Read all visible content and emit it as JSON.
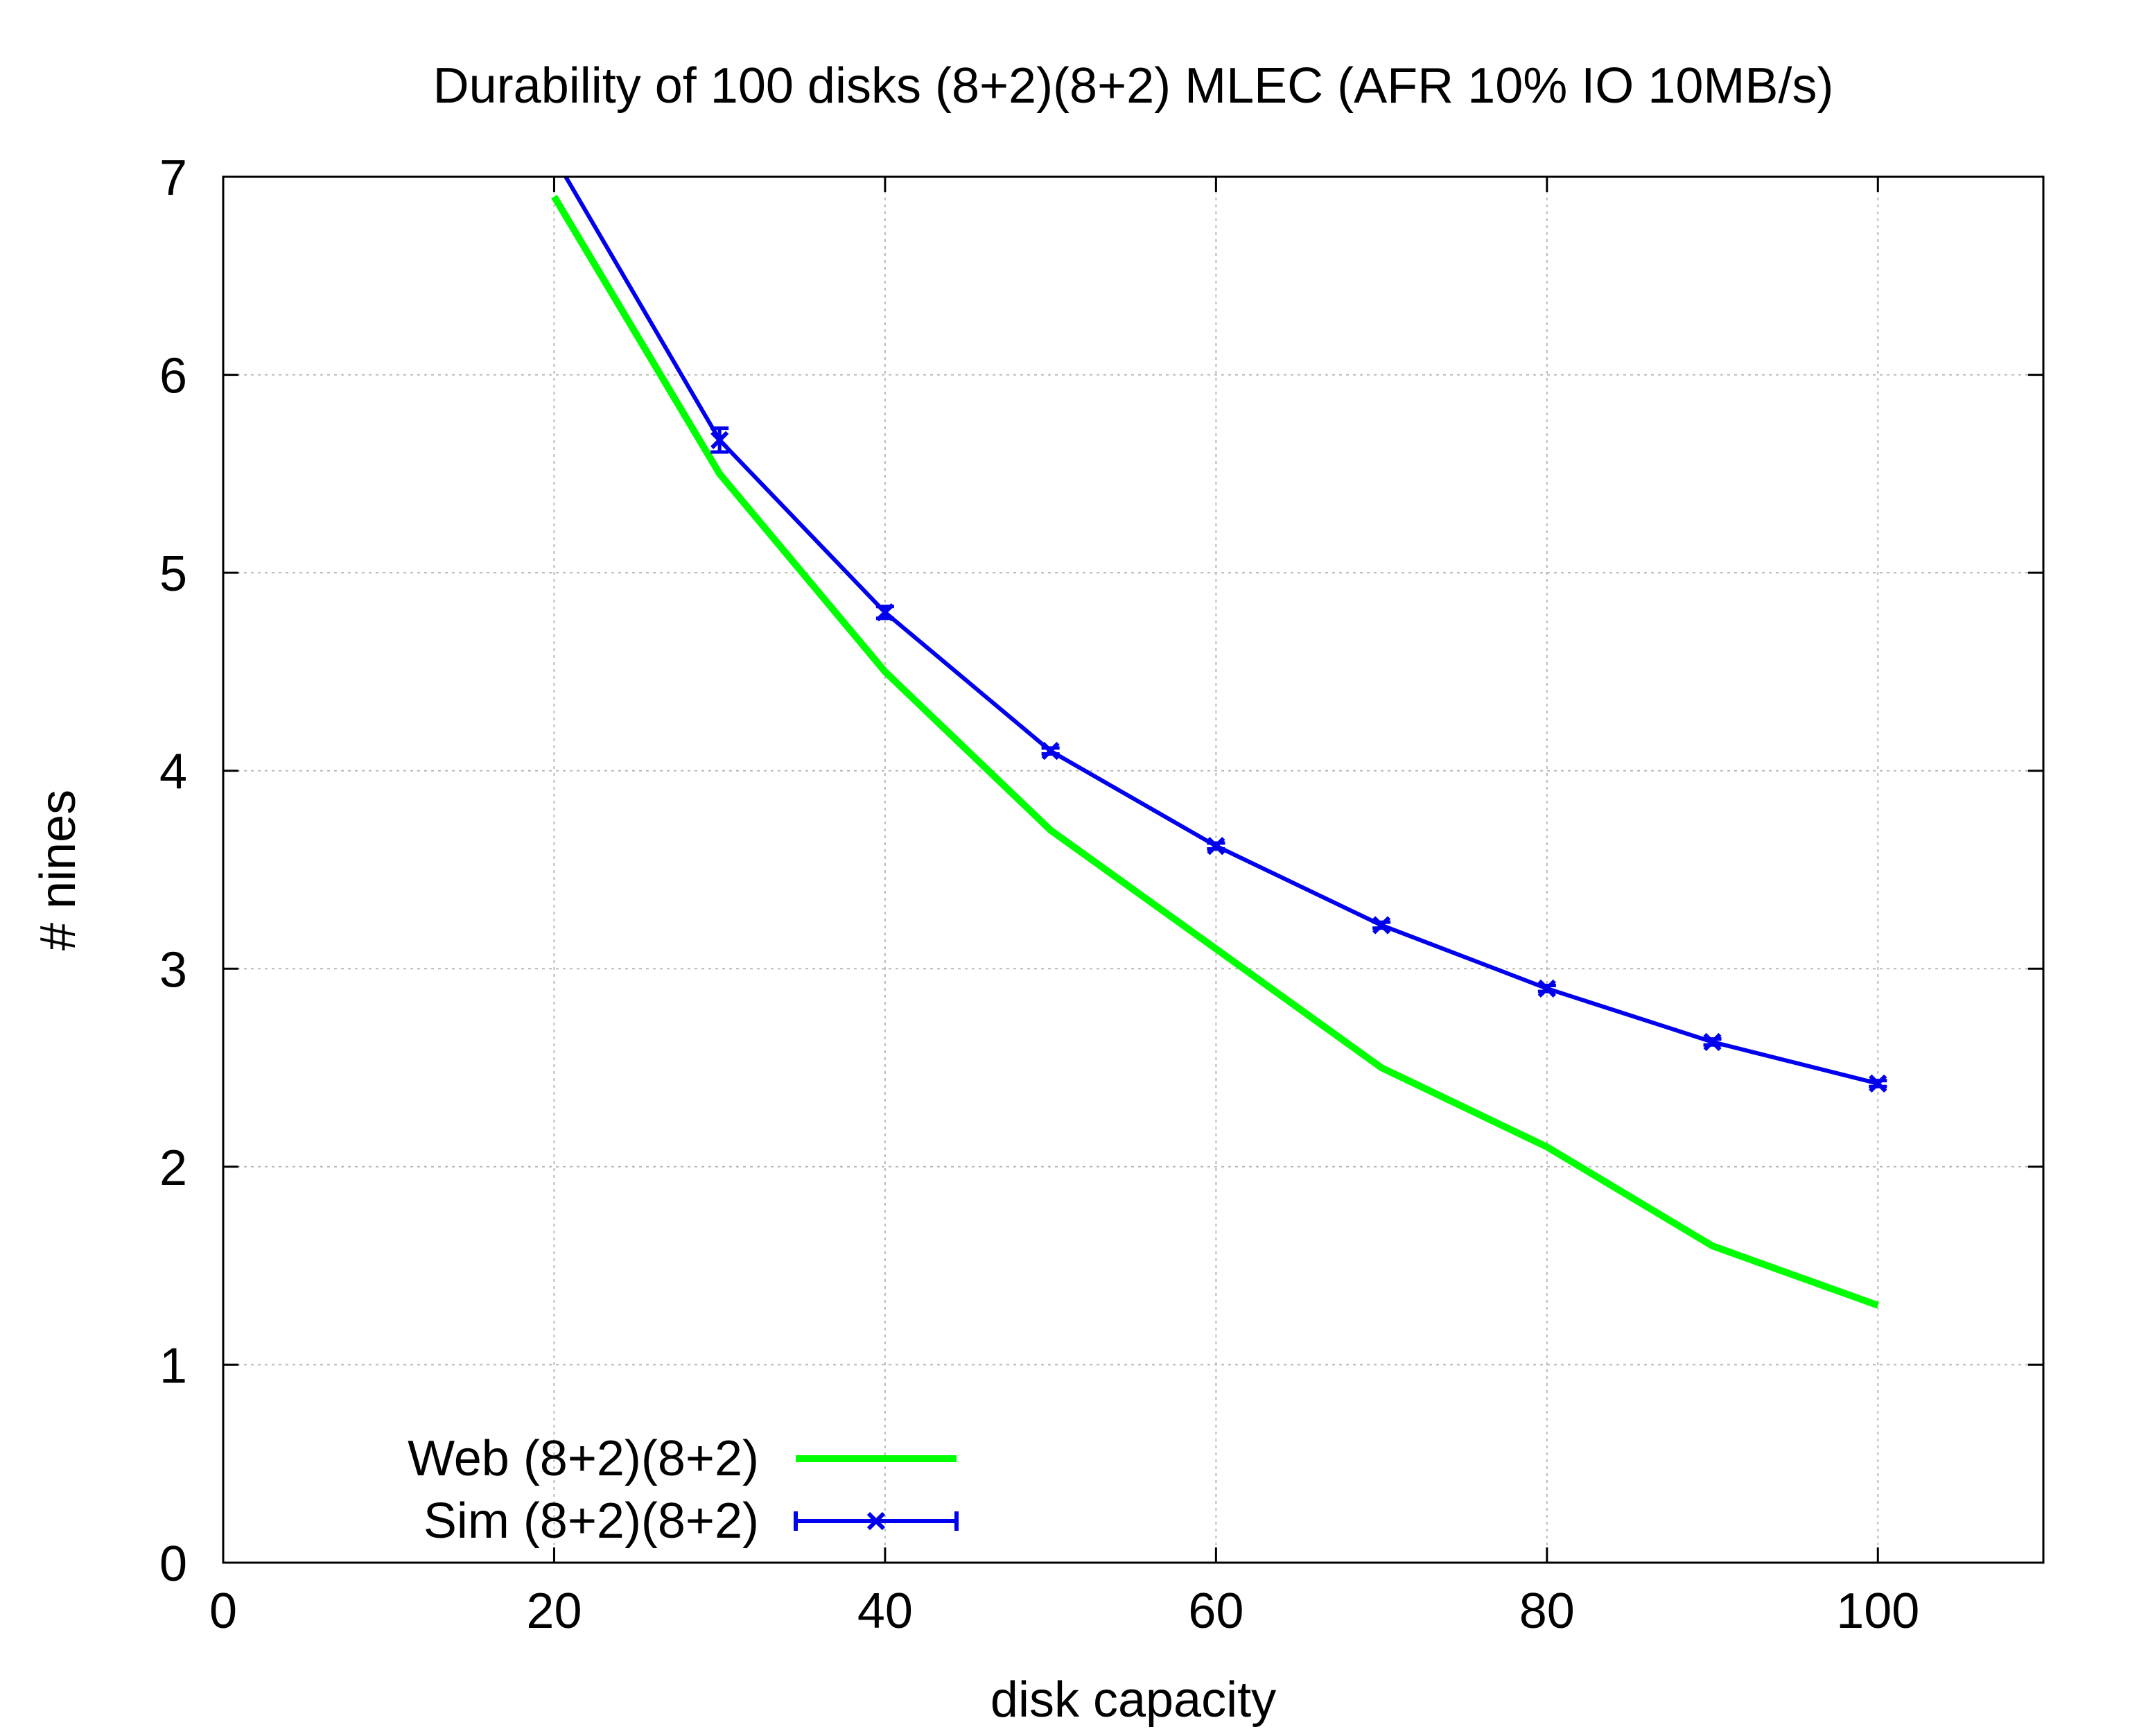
{
  "chart_data": {
    "type": "line",
    "title": "Durability of 100 disks (8+2)(8+2) MLEC (AFR 10% IO 10MB/s)",
    "xlabel": "disk capacity",
    "ylabel": "# nines",
    "xlim": [
      0,
      110
    ],
    "ylim": [
      0,
      7
    ],
    "x_ticks": [
      0,
      20,
      40,
      60,
      80,
      100
    ],
    "y_ticks": [
      0,
      1,
      2,
      3,
      4,
      5,
      6,
      7
    ],
    "grid": true,
    "legend_position": "bottom-left",
    "series": [
      {
        "name": "Web (8+2)(8+2)",
        "color": "#00ff00",
        "style": "line",
        "x": [
          20,
          30,
          40,
          50,
          60,
          70,
          80,
          90,
          100
        ],
        "y": [
          6.9,
          5.5,
          4.5,
          3.7,
          3.1,
          2.5,
          2.1,
          1.6,
          1.3
        ]
      },
      {
        "name": "Sim (8+2)(8+2)",
        "color": "#0000ee",
        "style": "linespoints-errorbars",
        "marker": "x",
        "x": [
          20,
          30,
          40,
          50,
          60,
          70,
          80,
          90,
          100
        ],
        "y": [
          7.1,
          5.67,
          4.8,
          4.1,
          3.62,
          3.22,
          2.9,
          2.63,
          2.42
        ],
        "err": [
          0,
          0.06,
          0.03,
          0.015,
          0.015,
          0.015,
          0.015,
          0.015,
          0.015
        ]
      }
    ]
  }
}
